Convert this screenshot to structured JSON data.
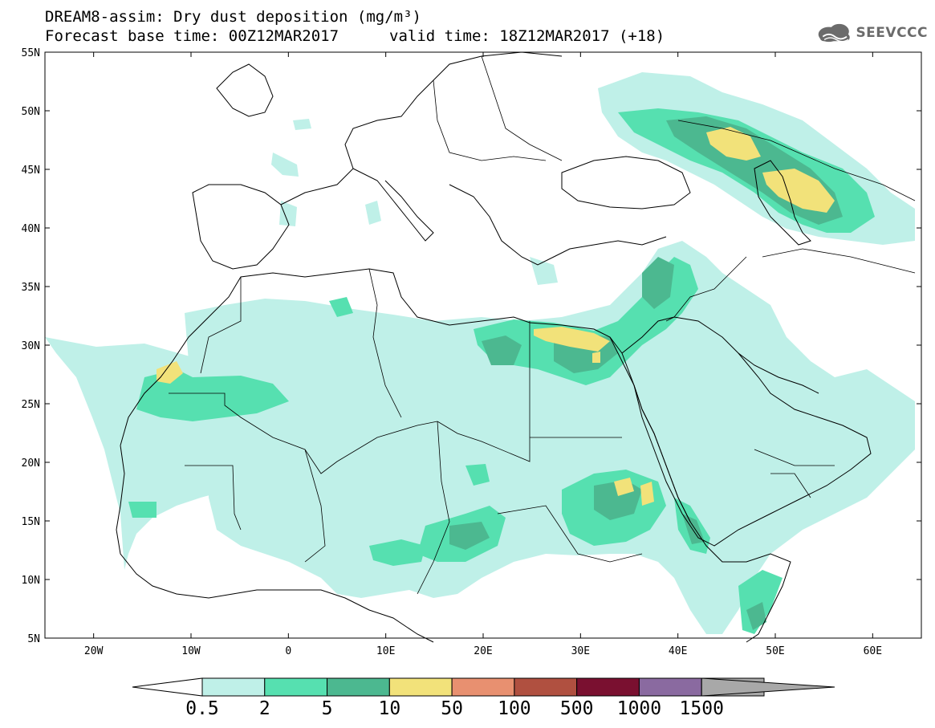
{
  "header": {
    "title_line1": "DREAM8-assim: Dry dust deposition (mg/m³)",
    "title_line2": "Forecast base time: 00Z12MAR2017",
    "valid_time": "valid time: 18Z12MAR2017 (+18)"
  },
  "logo": {
    "text": "SEEVCCC",
    "icon": "cloud-icon"
  },
  "map": {
    "lat_labels": [
      "55N",
      "50N",
      "45N",
      "40N",
      "35N",
      "30N",
      "25N",
      "20N",
      "15N",
      "10N",
      "5N"
    ],
    "lon_labels": [
      "20W",
      "10W",
      "0",
      "10E",
      "20E",
      "30E",
      "40E",
      "50E",
      "60E"
    ],
    "lat_range": [
      5,
      55
    ],
    "lon_range": [
      -25,
      65
    ]
  },
  "colorbar": {
    "labels": [
      "0.5",
      "2",
      "5",
      "10",
      "50",
      "100",
      "500",
      "1000",
      "1500"
    ],
    "colors": [
      "#bff0e8",
      "#56e0b0",
      "#4cb890",
      "#f2e27a",
      "#e89070",
      "#b05040",
      "#7a1030",
      "#8a6aa0",
      "#a8a8a8"
    ]
  }
}
